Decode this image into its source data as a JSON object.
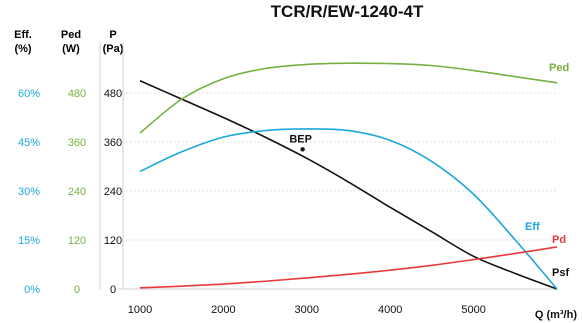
{
  "colors": {
    "eff": "#1ea7dc",
    "ped": "#76b043",
    "p": "#111111",
    "pd": "#e8393a",
    "psf": "#111111",
    "tick_black": "#111111"
  },
  "chart_data": {
    "type": "line",
    "title": "TCR/R/EW-1240-4T",
    "x_axis": {
      "label": "Q (m³/h)",
      "range": [
        1000,
        6000
      ],
      "ticks": [
        1000,
        2000,
        3000,
        4000,
        5000
      ]
    },
    "axes": {
      "eff": {
        "label_line1": "Eff.",
        "label_line2": "(%)",
        "range": [
          0,
          75
        ],
        "ticks": [
          "0%",
          "15%",
          "30%",
          "45%",
          "60%"
        ],
        "tick_values": [
          0,
          15,
          30,
          45,
          60
        ]
      },
      "ped": {
        "label_line1": "Ped",
        "label_line2": "(W)",
        "range": [
          0,
          600
        ],
        "ticks": [
          "0",
          "120",
          "240",
          "360",
          "480"
        ],
        "tick_values": [
          0,
          120,
          240,
          360,
          480
        ]
      },
      "p": {
        "label_line1": "P",
        "label_line2": "(Pa)",
        "range": [
          0,
          600
        ],
        "ticks": [
          "0",
          "120",
          "240",
          "360",
          "480"
        ],
        "tick_values": [
          0,
          120,
          240,
          360,
          480
        ]
      }
    },
    "series": [
      {
        "name": "Psf",
        "axis": "p",
        "color_key": "psf",
        "x": [
          1000,
          1500,
          2000,
          2500,
          3000,
          3500,
          4000,
          4500,
          5000,
          5500,
          6000
        ],
        "y": [
          510,
          465,
          420,
          372,
          320,
          262,
          200,
          140,
          80,
          38,
          0
        ]
      },
      {
        "name": "Eff",
        "axis": "eff",
        "color_key": "eff",
        "x": [
          1000,
          1500,
          2000,
          2500,
          3000,
          3500,
          4000,
          4500,
          5000,
          5500,
          6000
        ],
        "y": [
          36,
          42,
          46.5,
          48.5,
          49,
          48.5,
          45.5,
          39,
          29,
          15,
          0
        ]
      },
      {
        "name": "Ped",
        "axis": "ped",
        "color_key": "ped",
        "x": [
          1000,
          1500,
          2000,
          2500,
          3000,
          3500,
          4000,
          4500,
          5000,
          5500,
          6000
        ],
        "y": [
          382,
          465,
          515,
          540,
          550,
          553,
          552,
          547,
          535,
          520,
          505
        ]
      },
      {
        "name": "Pd",
        "axis": "p",
        "color_key": "pd",
        "x": [
          1000,
          1500,
          2000,
          2500,
          3000,
          3500,
          4000,
          4500,
          5000,
          5500,
          6000
        ],
        "y": [
          3,
          7,
          12,
          19,
          27,
          36,
          46,
          58,
          72,
          87,
          103
        ]
      }
    ],
    "annotations": [
      {
        "text": "BEP",
        "x": 2950,
        "y": 342,
        "axis": "p"
      }
    ]
  }
}
